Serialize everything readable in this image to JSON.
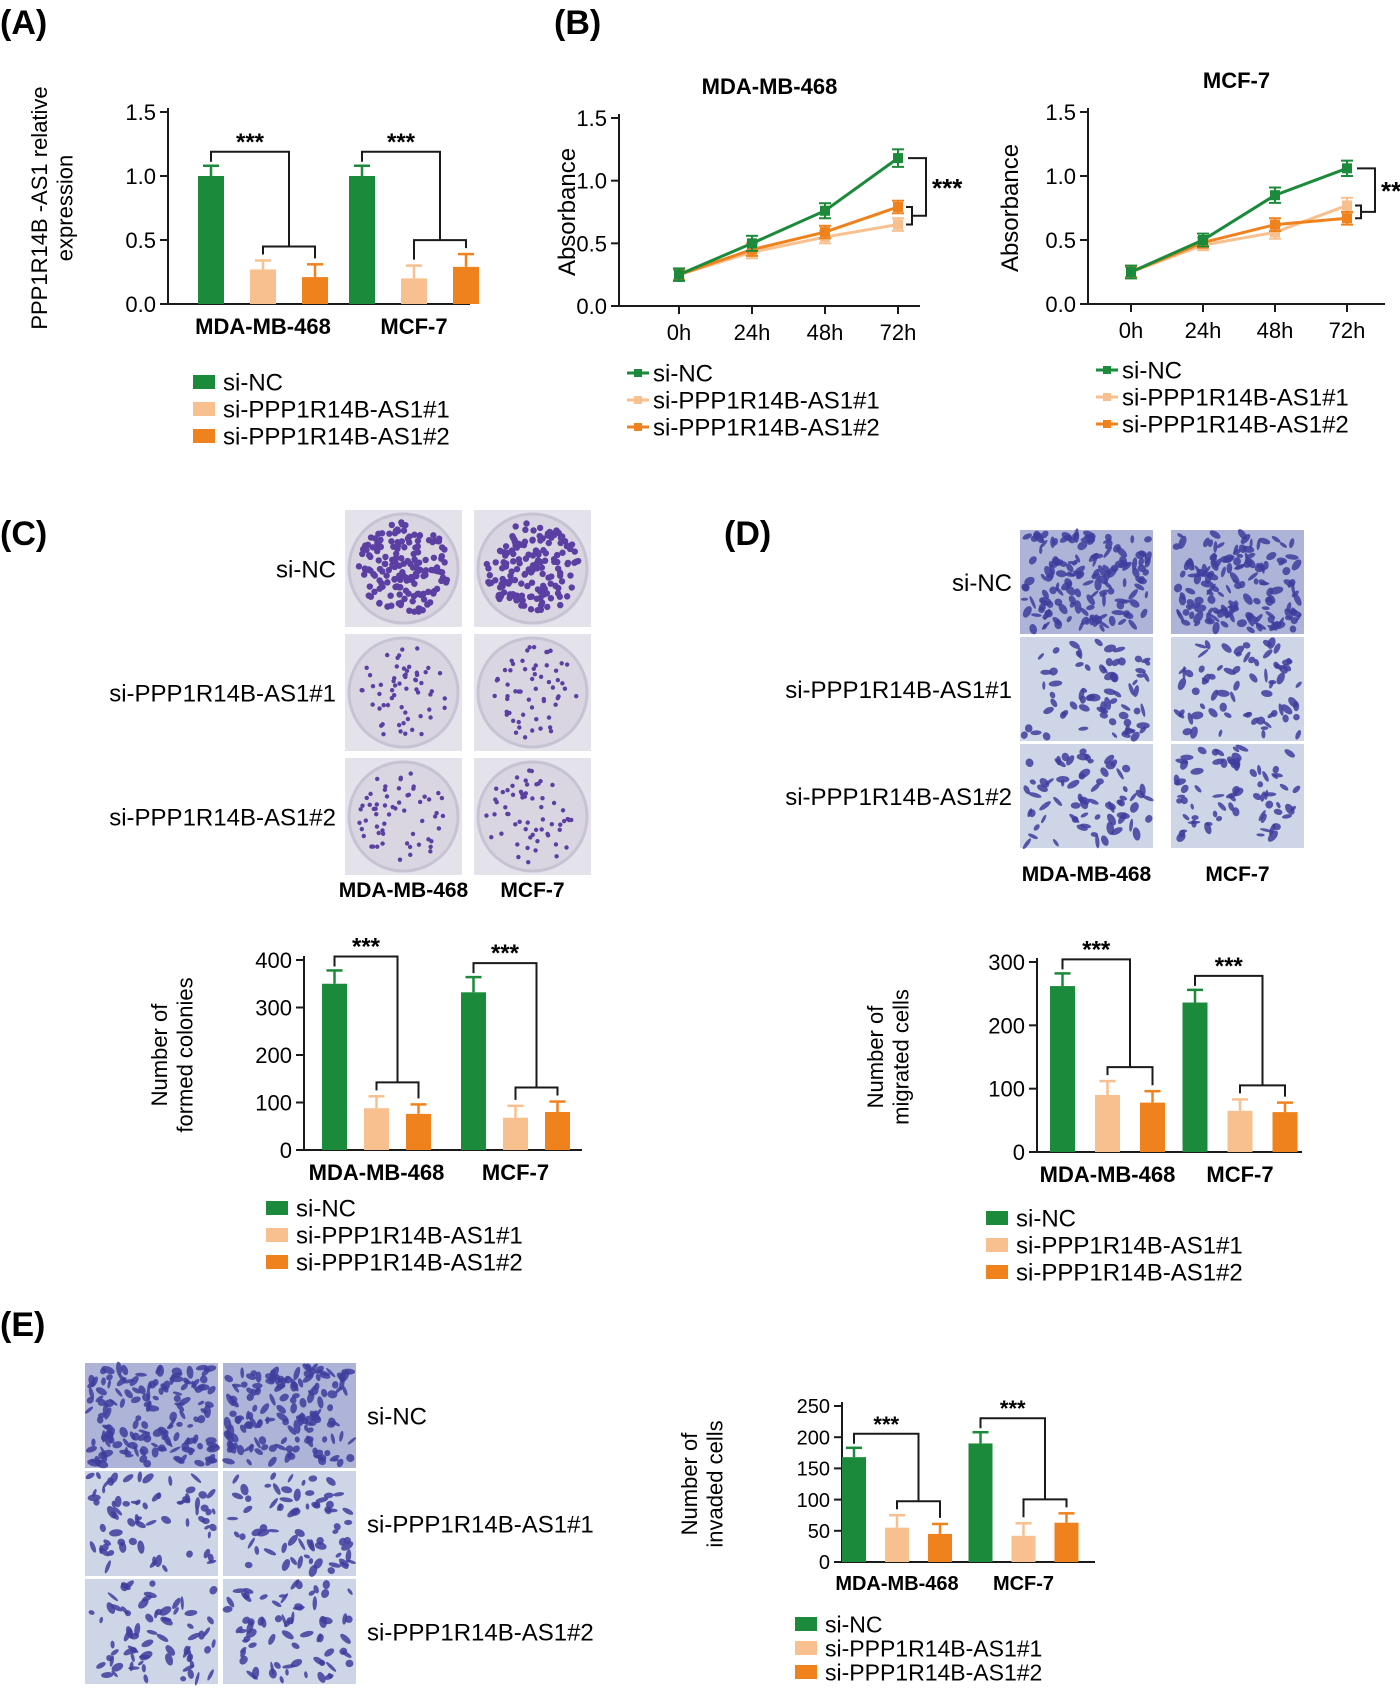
{
  "colors": {
    "nc": "#1b8a3a",
    "s1": "#f7c08e",
    "s2": "#f0821e",
    "axis": "#1a1a1a",
    "sig": "#1a1a1a",
    "photo_nc": "#6a5ab0",
    "photo_si": "#b9bfdc",
    "dish": "#d9d6e2"
  },
  "groups": [
    "si-NC",
    "si-PPP1R14B-AS1#1",
    "si-PPP1R14B-AS1#2"
  ],
  "panels": {
    "A": {
      "label": "(A)"
    },
    "B": {
      "label": "(B)"
    },
    "C": {
      "label": "(C)",
      "row_labels": [
        "si-NC",
        "si-PPP1R14B-AS1#1",
        "si-PPP1R14B-AS1#2"
      ],
      "col_labels": [
        "MDA-MB-468",
        "MCF-7"
      ]
    },
    "D": {
      "label": "(D)",
      "row_labels": [
        "si-NC",
        "si-PPP1R14B-AS1#1",
        "si-PPP1R14B-AS1#2"
      ],
      "col_labels": [
        "MDA-MB-468",
        "MCF-7"
      ]
    },
    "E": {
      "label": "(E)",
      "row_labels": [
        "si-NC",
        "si-PPP1R14B-AS1#1",
        "si-PPP1R14B-AS1#2"
      ],
      "col_labels": [
        "MDA-MB-468",
        "MCF-7"
      ]
    }
  },
  "chart_data": [
    {
      "id": "A",
      "type": "bar",
      "title": "",
      "ylabel": "PPP1R14B -AS1 relative expression",
      "ylabel_lines": [
        "PPP1R14B -AS1 relative",
        "expression"
      ],
      "categories": [
        "MDA-MB-468",
        "MCF-7"
      ],
      "ylim": [
        0,
        1.5
      ],
      "yticks": [
        0,
        0.5,
        1.0,
        1.5
      ],
      "ytick_labels": [
        "0.0",
        "0.5",
        "1.0",
        "1.5"
      ],
      "series": [
        {
          "name": "si-NC",
          "values": [
            1.0,
            1.0
          ],
          "errors": [
            0.08,
            0.08
          ]
        },
        {
          "name": "si-PPP1R14B-AS1#1",
          "values": [
            0.27,
            0.2
          ],
          "errors": [
            0.07,
            0.1
          ]
        },
        {
          "name": "si-PPP1R14B-AS1#2",
          "values": [
            0.21,
            0.29
          ],
          "errors": [
            0.1,
            0.1
          ]
        }
      ],
      "significance": [
        "***",
        "***"
      ],
      "legend_placement": "bottom"
    },
    {
      "id": "B1",
      "type": "line",
      "title": "MDA-MB-468",
      "ylabel": "Absorbance",
      "x": [
        "0h",
        "24h",
        "48h",
        "72h"
      ],
      "ylim": [
        0,
        1.5
      ],
      "yticks": [
        0,
        0.5,
        1.0,
        1.5
      ],
      "ytick_labels": [
        "0.0",
        "0.5",
        "1.0",
        "1.5"
      ],
      "series": [
        {
          "name": "si-NC",
          "values": [
            0.25,
            0.5,
            0.76,
            1.18
          ],
          "errors": [
            0.05,
            0.06,
            0.06,
            0.07
          ]
        },
        {
          "name": "si-PPP1R14B-AS1#1",
          "values": [
            0.25,
            0.43,
            0.55,
            0.65
          ],
          "errors": [
            0.04,
            0.05,
            0.05,
            0.05
          ]
        },
        {
          "name": "si-PPP1R14B-AS1#2",
          "values": [
            0.25,
            0.45,
            0.59,
            0.79
          ],
          "errors": [
            0.04,
            0.05,
            0.05,
            0.05
          ]
        }
      ],
      "significance": "***",
      "legend_placement": "bottom"
    },
    {
      "id": "B2",
      "type": "line",
      "title": "MCF-7",
      "ylabel": "Absorbance",
      "x": [
        "0h",
        "24h",
        "48h",
        "72h"
      ],
      "ylim": [
        0,
        1.5
      ],
      "yticks": [
        0,
        0.5,
        1.0,
        1.5
      ],
      "ytick_labels": [
        "0.0",
        "0.5",
        "1.0",
        "1.5"
      ],
      "series": [
        {
          "name": "si-NC",
          "values": [
            0.25,
            0.5,
            0.85,
            1.06
          ],
          "errors": [
            0.05,
            0.05,
            0.06,
            0.06
          ]
        },
        {
          "name": "si-PPP1R14B-AS1#1",
          "values": [
            0.25,
            0.46,
            0.56,
            0.77
          ],
          "errors": [
            0.04,
            0.04,
            0.05,
            0.06
          ]
        },
        {
          "name": "si-PPP1R14B-AS1#2",
          "values": [
            0.25,
            0.48,
            0.62,
            0.67
          ],
          "errors": [
            0.04,
            0.04,
            0.05,
            0.05
          ]
        }
      ],
      "significance": "**",
      "legend_placement": "bottom"
    },
    {
      "id": "C",
      "type": "bar",
      "title": "",
      "ylabel": "Number of formed colonies",
      "ylabel_lines": [
        "Number of",
        "formed colonies"
      ],
      "categories": [
        "MDA-MB-468",
        "MCF-7"
      ],
      "ylim": [
        0,
        400
      ],
      "yticks": [
        0,
        100,
        200,
        300,
        400
      ],
      "ytick_labels": [
        "0",
        "100",
        "200",
        "300",
        "400"
      ],
      "series": [
        {
          "name": "si-NC",
          "values": [
            350,
            332
          ],
          "errors": [
            28,
            32
          ]
        },
        {
          "name": "si-PPP1R14B-AS1#1",
          "values": [
            88,
            68
          ],
          "errors": [
            25,
            25
          ]
        },
        {
          "name": "si-PPP1R14B-AS1#2",
          "values": [
            76,
            80
          ],
          "errors": [
            20,
            22
          ]
        }
      ],
      "significance": [
        "***",
        "***"
      ],
      "legend_placement": "bottom"
    },
    {
      "id": "D",
      "type": "bar",
      "title": "",
      "ylabel": "Number of migrated cells",
      "ylabel_lines": [
        "Number of",
        "migrated cells"
      ],
      "categories": [
        "MDA-MB-468",
        "MCF-7"
      ],
      "ylim": [
        0,
        300
      ],
      "yticks": [
        0,
        100,
        200,
        300
      ],
      "ytick_labels": [
        "0",
        "100",
        "200",
        "300"
      ],
      "series": [
        {
          "name": "si-NC",
          "values": [
            262,
            236
          ],
          "errors": [
            20,
            20
          ]
        },
        {
          "name": "si-PPP1R14B-AS1#1",
          "values": [
            90,
            65
          ],
          "errors": [
            22,
            18
          ]
        },
        {
          "name": "si-PPP1R14B-AS1#2",
          "values": [
            78,
            63
          ],
          "errors": [
            18,
            15
          ]
        }
      ],
      "significance": [
        "***",
        "***"
      ],
      "legend_placement": "bottom"
    },
    {
      "id": "E",
      "type": "bar",
      "title": "",
      "ylabel": "Number of invaded cells",
      "ylabel_lines": [
        "Number of",
        "invaded cells"
      ],
      "categories": [
        "MDA-MB-468",
        "MCF-7"
      ],
      "ylim": [
        0,
        250
      ],
      "yticks": [
        0,
        50,
        100,
        150,
        200,
        250
      ],
      "ytick_labels": [
        "0",
        "50",
        "100",
        "150",
        "200",
        "250"
      ],
      "series": [
        {
          "name": "si-NC",
          "values": [
            168,
            190
          ],
          "errors": [
            15,
            18
          ]
        },
        {
          "name": "si-PPP1R14B-AS1#1",
          "values": [
            55,
            42
          ],
          "errors": [
            20,
            20
          ]
        },
        {
          "name": "si-PPP1R14B-AS1#2",
          "values": [
            45,
            63
          ],
          "errors": [
            16,
            15
          ]
        }
      ],
      "significance": [
        "***",
        "***"
      ],
      "legend_placement": "bottom"
    }
  ]
}
